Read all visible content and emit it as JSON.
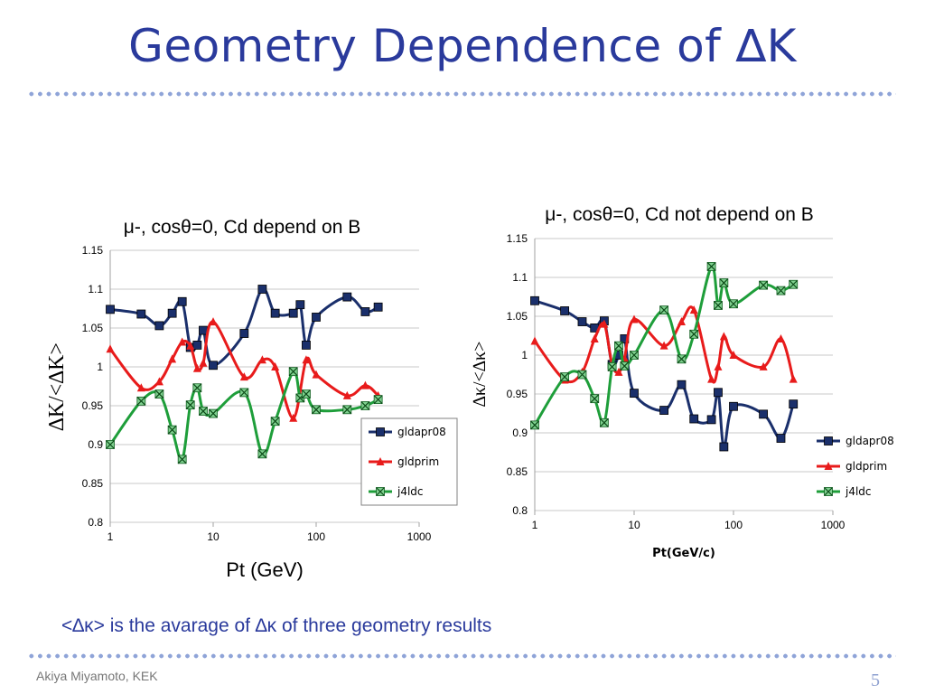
{
  "slide": {
    "title": "Geometry Dependence of ∆K",
    "footnote": "<∆κ> is the avarage of ∆κ of three geometry results",
    "author": "Akiya Miyamoto, KEK",
    "page": "5",
    "accent_color": "#2a3a9c",
    "dot_color": "#8fa4d8"
  },
  "chart_data": [
    {
      "type": "line",
      "title": "μ-, cosθ=0, Cd depend on B",
      "xlabel": "Pt (GeV)",
      "ylabel": "∆K/<∆K>",
      "xscale": "log",
      "xlim": [
        1,
        1000
      ],
      "ylim": [
        0.8,
        1.15
      ],
      "yticks": [
        "0.8",
        "0.85",
        "0.9",
        "0.95",
        "1",
        "1.05",
        "1.1",
        "1.15"
      ],
      "xticks": [
        "1",
        "10",
        "100",
        "1000"
      ],
      "grid": "horizontal",
      "legend": "inside-right",
      "series": [
        {
          "name": "gldapr08",
          "color": "#1a2f6b",
          "marker": "square",
          "points": [
            [
              1.0,
              1.074
            ],
            [
              2.0,
              1.068
            ],
            [
              3.0,
              1.053
            ],
            [
              4.0,
              1.069
            ],
            [
              5.0,
              1.084
            ],
            [
              6.0,
              1.025
            ],
            [
              7.0,
              1.028
            ],
            [
              8.0,
              1.047
            ],
            [
              10.0,
              1.002
            ],
            [
              20.0,
              1.043
            ],
            [
              30.0,
              1.1
            ],
            [
              40.0,
              1.069
            ],
            [
              60.0,
              1.069
            ],
            [
              70.0,
              1.08
            ],
            [
              80.0,
              1.028
            ],
            [
              100.0,
              1.064
            ],
            [
              200.0,
              1.09
            ],
            [
              300.0,
              1.071
            ],
            [
              400.0,
              1.077
            ]
          ]
        },
        {
          "name": "gldprim",
          "color": "#e81b1b",
          "marker": "triangle",
          "points": [
            [
              1.0,
              1.023
            ],
            [
              2.0,
              0.973
            ],
            [
              3.0,
              0.981
            ],
            [
              4.0,
              1.01
            ],
            [
              5.0,
              1.032
            ],
            [
              6.0,
              1.027
            ],
            [
              7.0,
              0.998
            ],
            [
              8.0,
              1.005
            ],
            [
              10.0,
              1.058
            ],
            [
              20.0,
              0.987
            ],
            [
              30.0,
              1.009
            ],
            [
              40.0,
              1.0
            ],
            [
              60.0,
              0.934
            ],
            [
              80.0,
              1.009
            ],
            [
              100.0,
              0.99
            ],
            [
              200.0,
              0.963
            ],
            [
              300.0,
              0.976
            ],
            [
              400.0,
              0.963
            ]
          ]
        },
        {
          "name": "j4ldc",
          "color": "#1e9e3a",
          "marker": "x-square",
          "points": [
            [
              1.0,
              0.9
            ],
            [
              2.0,
              0.956
            ],
            [
              3.0,
              0.965
            ],
            [
              4.0,
              0.919
            ],
            [
              5.0,
              0.881
            ],
            [
              6.0,
              0.951
            ],
            [
              7.0,
              0.973
            ],
            [
              8.0,
              0.943
            ],
            [
              10.0,
              0.94
            ],
            [
              20.0,
              0.967
            ],
            [
              30.0,
              0.888
            ],
            [
              40.0,
              0.93
            ],
            [
              60.0,
              0.994
            ],
            [
              70.0,
              0.96
            ],
            [
              80.0,
              0.965
            ],
            [
              100.0,
              0.945
            ],
            [
              200.0,
              0.945
            ],
            [
              300.0,
              0.95
            ],
            [
              400.0,
              0.958
            ]
          ]
        }
      ]
    },
    {
      "type": "line",
      "title": "μ-, cosθ=0, Cd not depend on B",
      "xlabel": "Pt(GeV/c)",
      "ylabel": "∆κ/<∆κ>",
      "xscale": "log",
      "xlim": [
        1,
        1000
      ],
      "ylim": [
        0.8,
        1.15
      ],
      "yticks": [
        "0.8",
        "0.85",
        "0.9",
        "0.95",
        "1",
        "1.05",
        "1.1",
        "1.15"
      ],
      "xticks": [
        "1",
        "10",
        "100",
        "1000"
      ],
      "grid": "horizontal",
      "legend": "outside-right",
      "series": [
        {
          "name": "gldapr08",
          "color": "#1a2f6b",
          "marker": "square",
          "points": [
            [
              1.0,
              1.07
            ],
            [
              2.0,
              1.057
            ],
            [
              3.0,
              1.043
            ],
            [
              4.0,
              1.035
            ],
            [
              5.0,
              1.044
            ],
            [
              6.0,
              0.988
            ],
            [
              7.0,
              1.0
            ],
            [
              8.0,
              1.021
            ],
            [
              10.0,
              0.951
            ],
            [
              20.0,
              0.929
            ],
            [
              30.0,
              0.962
            ],
            [
              40.0,
              0.918
            ],
            [
              60.0,
              0.917
            ],
            [
              70.0,
              0.952
            ],
            [
              80.0,
              0.882
            ],
            [
              100.0,
              0.934
            ],
            [
              200.0,
              0.924
            ],
            [
              300.0,
              0.893
            ],
            [
              400.0,
              0.937
            ]
          ]
        },
        {
          "name": "gldprim",
          "color": "#e81b1b",
          "marker": "triangle",
          "points": [
            [
              1.0,
              1.018
            ],
            [
              2.0,
              0.968
            ],
            [
              3.0,
              0.978
            ],
            [
              4.0,
              1.021
            ],
            [
              5.0,
              1.04
            ],
            [
              6.0,
              0.988
            ],
            [
              7.0,
              0.978
            ],
            [
              8.0,
              0.996
            ],
            [
              10.0,
              1.046
            ],
            [
              20.0,
              1.012
            ],
            [
              30.0,
              1.043
            ],
            [
              40.0,
              1.058
            ],
            [
              60.0,
              0.969
            ],
            [
              70.0,
              0.985
            ],
            [
              80.0,
              1.024
            ],
            [
              100.0,
              1.0
            ],
            [
              200.0,
              0.985
            ],
            [
              300.0,
              1.021
            ],
            [
              400.0,
              0.969
            ]
          ]
        },
        {
          "name": "j4ldc",
          "color": "#1e9e3a",
          "marker": "x-square",
          "points": [
            [
              1.0,
              0.91
            ],
            [
              2.0,
              0.972
            ],
            [
              3.0,
              0.975
            ],
            [
              4.0,
              0.944
            ],
            [
              5.0,
              0.913
            ],
            [
              6.0,
              0.985
            ],
            [
              7.0,
              1.012
            ],
            [
              8.0,
              0.986
            ],
            [
              10.0,
              1.0
            ],
            [
              20.0,
              1.058
            ],
            [
              30.0,
              0.995
            ],
            [
              40.0,
              1.027
            ],
            [
              60.0,
              1.114
            ],
            [
              70.0,
              1.064
            ],
            [
              80.0,
              1.093
            ],
            [
              100.0,
              1.066
            ],
            [
              200.0,
              1.09
            ],
            [
              300.0,
              1.083
            ],
            [
              400.0,
              1.091
            ]
          ]
        }
      ]
    }
  ]
}
